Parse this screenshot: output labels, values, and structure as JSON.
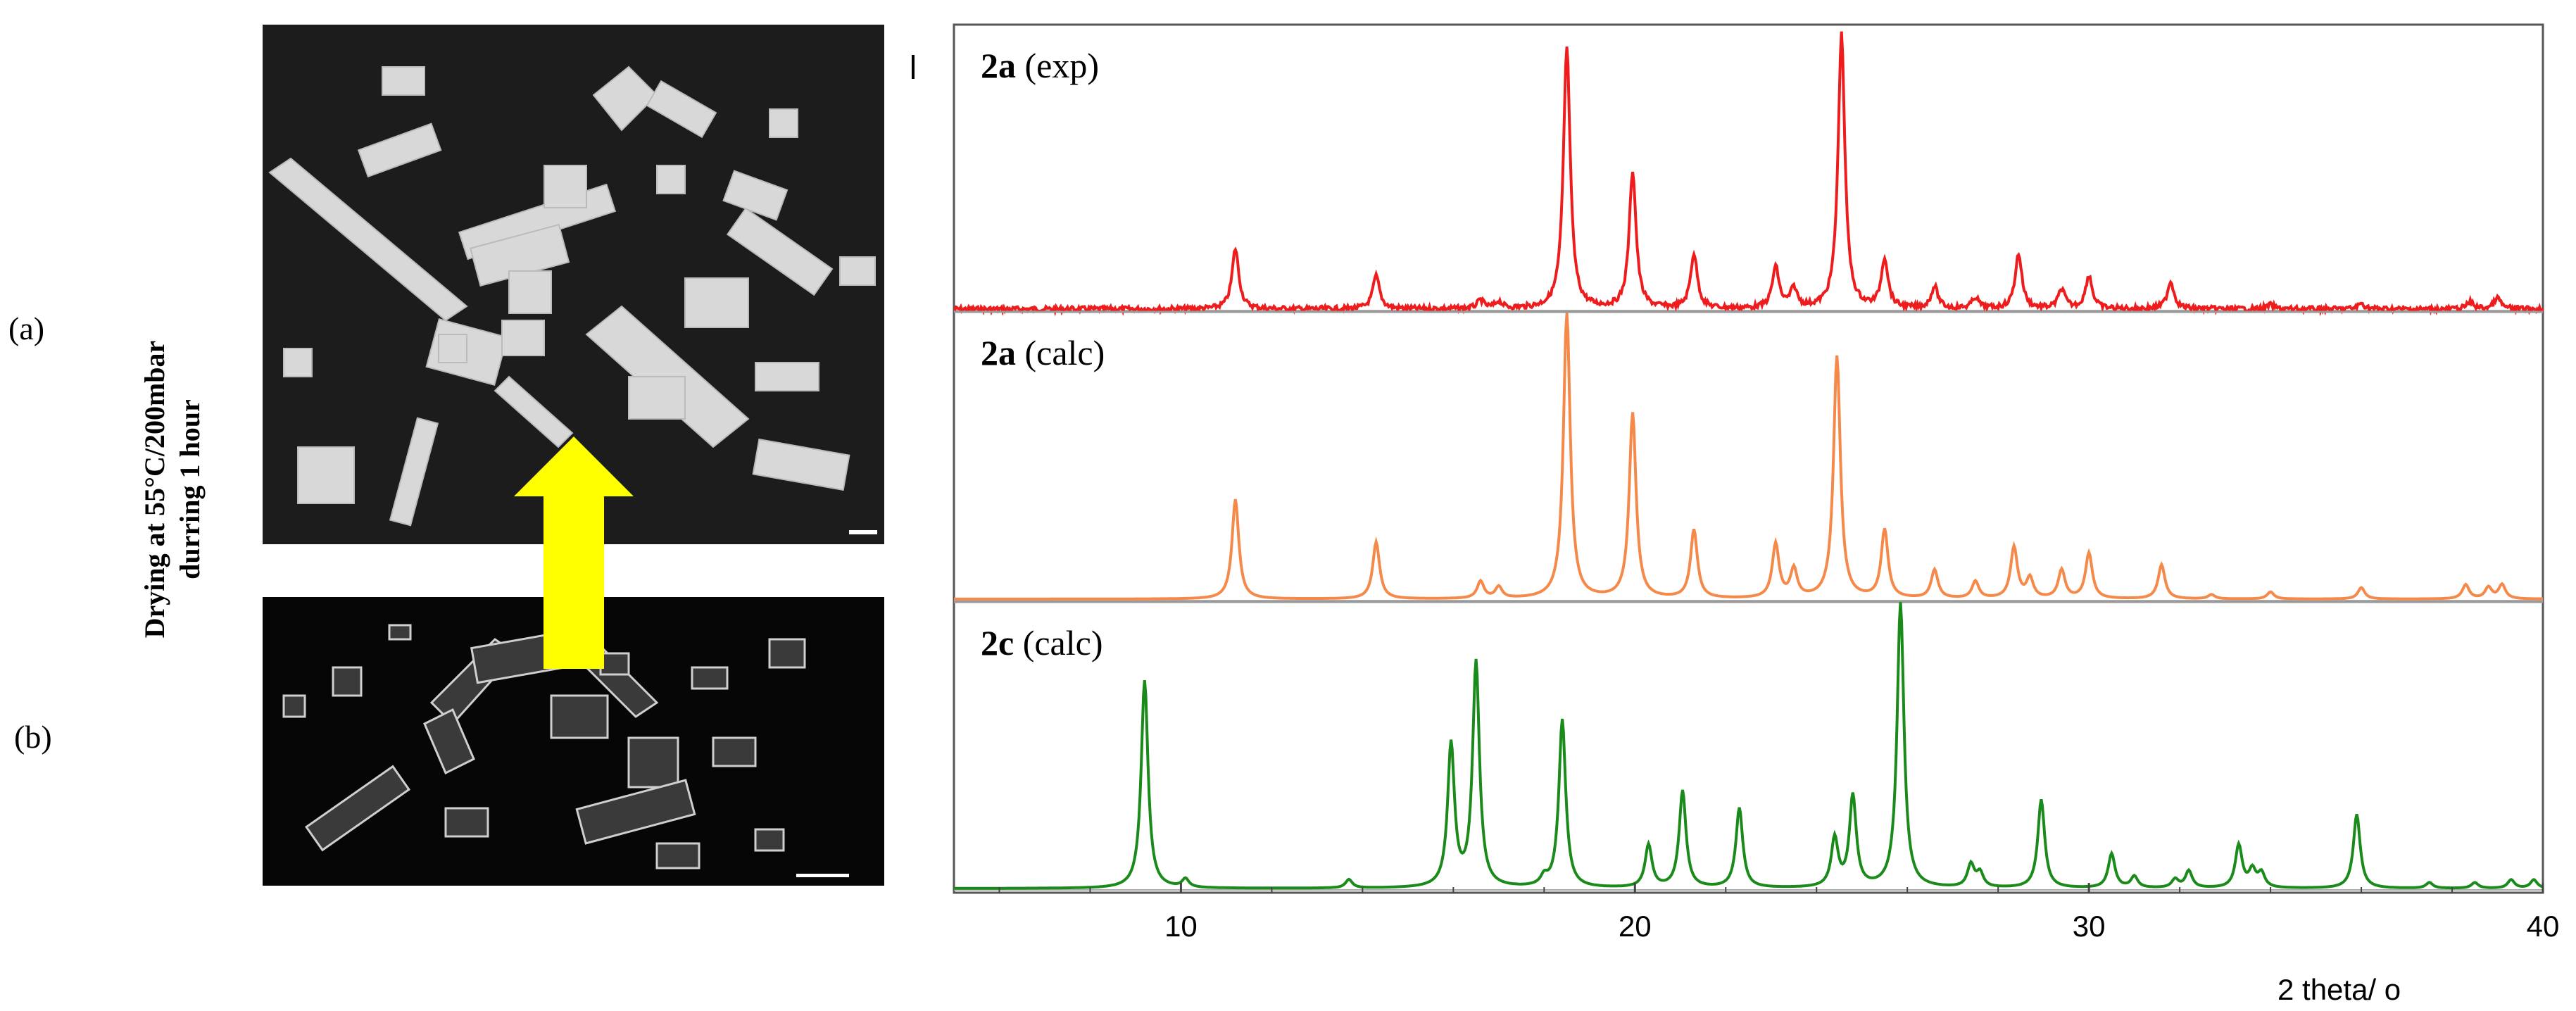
{
  "labels": {
    "a": "(a)",
    "b": "(b)"
  },
  "side_text": {
    "line1": "Drying at 55°C/200mbar",
    "line2": "durring 1 hour"
  },
  "colors": {
    "exp": "#ee1c1c",
    "calc_a": "#f5894a",
    "calc_c": "#1a8a1a",
    "arrow": "#ffff00"
  },
  "chart_data": {
    "type": "line",
    "xlabel": "2 theta/ o",
    "xlim": [
      5,
      40
    ],
    "x_ticks": [
      10,
      20,
      30,
      40
    ],
    "series": [
      {
        "name_bold": "2a",
        "name_rest": " (exp)",
        "peaks": [
          [
            11.2,
            0.22
          ],
          [
            14.3,
            0.12
          ],
          [
            16.6,
            0.03
          ],
          [
            17.0,
            0.025
          ],
          [
            18.5,
            0.95
          ],
          [
            19.95,
            0.5
          ],
          [
            21.3,
            0.2
          ],
          [
            23.1,
            0.15
          ],
          [
            23.5,
            0.07
          ],
          [
            24.55,
            1.0
          ],
          [
            25.5,
            0.18
          ],
          [
            26.6,
            0.08
          ],
          [
            27.5,
            0.04
          ],
          [
            28.45,
            0.2
          ],
          [
            29.4,
            0.07
          ],
          [
            30.0,
            0.12
          ],
          [
            31.8,
            0.1
          ],
          [
            34.0,
            0.015
          ],
          [
            36.0,
            0.02
          ],
          [
            38.4,
            0.025
          ],
          [
            39.0,
            0.04
          ]
        ]
      },
      {
        "name_bold": "2a",
        "name_rest": " (calc)",
        "peaks": [
          [
            11.2,
            0.35
          ],
          [
            14.3,
            0.2
          ],
          [
            16.6,
            0.06
          ],
          [
            17.0,
            0.04
          ],
          [
            18.5,
            1.0
          ],
          [
            19.95,
            0.65
          ],
          [
            21.3,
            0.24
          ],
          [
            23.1,
            0.19
          ],
          [
            23.5,
            0.1
          ],
          [
            24.45,
            0.85
          ],
          [
            25.5,
            0.24
          ],
          [
            26.6,
            0.1
          ],
          [
            27.5,
            0.06
          ],
          [
            28.35,
            0.18
          ],
          [
            28.7,
            0.07
          ],
          [
            29.4,
            0.1
          ],
          [
            30.0,
            0.16
          ],
          [
            31.6,
            0.12
          ],
          [
            32.7,
            0.015
          ],
          [
            34.0,
            0.025
          ],
          [
            36.0,
            0.04
          ],
          [
            38.3,
            0.05
          ],
          [
            38.8,
            0.04
          ],
          [
            39.1,
            0.05
          ]
        ]
      },
      {
        "name_bold": "2c",
        "name_rest": " (calc)",
        "peaks": [
          [
            9.2,
            0.73
          ],
          [
            10.1,
            0.03
          ],
          [
            13.7,
            0.03
          ],
          [
            15.95,
            0.5
          ],
          [
            16.5,
            0.79
          ],
          [
            18.0,
            0.03
          ],
          [
            18.4,
            0.59
          ],
          [
            20.3,
            0.15
          ],
          [
            21.05,
            0.34
          ],
          [
            22.3,
            0.28
          ],
          [
            24.4,
            0.17
          ],
          [
            24.8,
            0.32
          ],
          [
            25.85,
            1.0
          ],
          [
            27.4,
            0.08
          ],
          [
            27.6,
            0.05
          ],
          [
            28.95,
            0.31
          ],
          [
            30.5,
            0.12
          ],
          [
            31.0,
            0.04
          ],
          [
            31.9,
            0.03
          ],
          [
            32.2,
            0.06
          ],
          [
            33.3,
            0.15
          ],
          [
            33.6,
            0.06
          ],
          [
            33.8,
            0.05
          ],
          [
            35.9,
            0.26
          ],
          [
            37.5,
            0.02
          ],
          [
            38.5,
            0.02
          ],
          [
            39.3,
            0.03
          ],
          [
            39.8,
            0.03
          ]
        ]
      }
    ]
  }
}
